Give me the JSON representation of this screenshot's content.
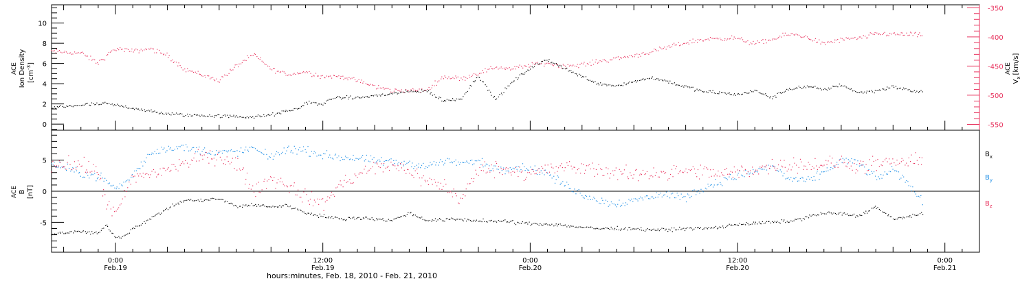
{
  "figure": {
    "x_axis_title": "hours:minutes, Feb. 18, 2010 - Feb. 21, 2010",
    "x_ticks": [
      {
        "t": 0,
        "time": "0:00",
        "date": "Feb.19"
      },
      {
        "t": 12,
        "time": "12:00",
        "date": "Feb.19"
      },
      {
        "t": 24,
        "time": "0:00",
        "date": "Feb.20"
      },
      {
        "t": 36,
        "time": "12:00",
        "date": "Feb.20"
      },
      {
        "t": 48,
        "time": "0:00",
        "date": "Feb.21"
      }
    ]
  },
  "colors": {
    "black": "#000000",
    "red": "#e8345f",
    "blue": "#1f8fe6"
  },
  "chart_data": [
    {
      "type": "scatter",
      "panel": "top",
      "xlim": [
        -3.7,
        50.0
      ],
      "ylim_left": [
        -0.6,
        11.8
      ],
      "ylim_right": [
        -560,
        -345
      ],
      "left_ylabel": [
        "ACE",
        "Ion Density",
        "[cm",
        "-3",
        "]"
      ],
      "right_ylabel": [
        "ACE",
        "V",
        "x",
        "[km/s]"
      ],
      "left_ticks": [
        "0",
        "2",
        "4",
        "6",
        "8",
        "10"
      ],
      "left_tick_values": [
        0,
        2,
        4,
        6,
        8,
        10
      ],
      "right_ticks": [
        "-550",
        "-500",
        "-450",
        "-400",
        "-350"
      ],
      "right_tick_values": [
        -550,
        -500,
        -450,
        -400,
        -350
      ],
      "series": [
        {
          "color": "black",
          "axis": "left",
          "scatter": 0.25,
          "x": [
            -3.7,
            -2,
            -0.5,
            1,
            2.5,
            4,
            6,
            8,
            9,
            10.5,
            11.2,
            12,
            12.5,
            14,
            16,
            17,
            18,
            19,
            20,
            21,
            22,
            23,
            24,
            25,
            26,
            27,
            28,
            29,
            30,
            31,
            32,
            33,
            34,
            35,
            36,
            37,
            38,
            39,
            40,
            41,
            42,
            43,
            44,
            45,
            46,
            46.7
          ],
          "y": [
            1.6,
            1.9,
            2.0,
            1.6,
            1.1,
            0.9,
            0.8,
            0.7,
            0.9,
            1.5,
            2.2,
            1.9,
            2.6,
            2.6,
            3.0,
            3.2,
            3.3,
            2.3,
            2.5,
            4.8,
            2.4,
            4.2,
            5.5,
            6.4,
            5.5,
            4.7,
            4.0,
            3.8,
            4.2,
            4.6,
            4.2,
            3.7,
            3.2,
            3.1,
            2.9,
            3.3,
            2.6,
            3.5,
            3.7,
            3.4,
            3.9,
            3.1,
            3.3,
            3.7,
            3.3,
            3.2
          ]
        },
        {
          "color": "red",
          "axis": "right",
          "scatter": 6,
          "x": [
            -3.7,
            -2,
            -1,
            0,
            1,
            2,
            3,
            4,
            5,
            6,
            7,
            8,
            9,
            10,
            11,
            12,
            13,
            14,
            15,
            16,
            17,
            18,
            19,
            20,
            21,
            22,
            23,
            24,
            25,
            26,
            27,
            28,
            29,
            30,
            31,
            32,
            33,
            34,
            35,
            36,
            37,
            38,
            39,
            40,
            41,
            42,
            43,
            44,
            45,
            46,
            46.7
          ],
          "y": [
            -425,
            -428,
            -445,
            -420,
            -425,
            -420,
            -432,
            -455,
            -465,
            -475,
            -450,
            -430,
            -455,
            -465,
            -460,
            -468,
            -468,
            -475,
            -485,
            -492,
            -492,
            -492,
            -468,
            -472,
            -462,
            -452,
            -455,
            -448,
            -445,
            -450,
            -448,
            -442,
            -437,
            -432,
            -426,
            -418,
            -410,
            -405,
            -402,
            -403,
            -412,
            -405,
            -395,
            -400,
            -412,
            -405,
            -403,
            -395,
            -395,
            -396,
            -398
          ]
        }
      ]
    },
    {
      "type": "scatter",
      "panel": "bottom",
      "xlim": [
        -3.7,
        50.0
      ],
      "ylim": [
        -9.8,
        9.8
      ],
      "left_ylabel": [
        "ACE",
        "B",
        "[nT]"
      ],
      "left_ticks": [
        "-5",
        "0",
        "5"
      ],
      "left_tick_values": [
        -5,
        0,
        5
      ],
      "legend": [
        "B",
        "B",
        "B"
      ],
      "legend_sub": [
        "x",
        "y",
        "z"
      ],
      "series": [
        {
          "color": "black",
          "scatter": 0.4,
          "x": [
            -3.7,
            -2,
            -1,
            -0.5,
            0,
            0.5,
            1,
            2,
            3,
            4,
            5,
            6,
            7,
            8,
            9,
            10,
            11,
            12,
            13,
            14,
            15,
            16,
            17,
            18,
            19,
            20,
            21,
            22,
            23,
            24,
            25,
            26,
            27,
            28,
            29,
            30,
            31,
            32,
            33,
            34,
            35,
            36,
            37,
            38,
            39,
            40,
            41,
            42,
            43,
            44,
            45,
            46,
            46.7
          ],
          "y": [
            -6.8,
            -6.5,
            -6.8,
            -5.5,
            -7.5,
            -7.2,
            -6,
            -4.5,
            -2.8,
            -1.5,
            -1.5,
            -1.2,
            -2.5,
            -2.2,
            -2.5,
            -2.3,
            -3.5,
            -4,
            -4.5,
            -4.2,
            -4.5,
            -4.7,
            -3.5,
            -4.7,
            -4.6,
            -4.5,
            -4.8,
            -4.8,
            -5,
            -5.2,
            -5.3,
            -5.5,
            -5.8,
            -6,
            -6,
            -6,
            -6.2,
            -6.2,
            -6,
            -6,
            -5.8,
            -5.3,
            -5.2,
            -5,
            -4.8,
            -4.2,
            -3.5,
            -3.6,
            -4,
            -2.5,
            -4.5,
            -4,
            -3.7
          ]
        },
        {
          "color": "blue",
          "scatter": 1.0,
          "x": [
            -3.7,
            -2,
            -1,
            0,
            0.5,
            1,
            2,
            3,
            4,
            5,
            6,
            7,
            8,
            9,
            10,
            11,
            12,
            13,
            14,
            15,
            16,
            17,
            18,
            19,
            20,
            21,
            22,
            23,
            24,
            25,
            26,
            27,
            28,
            29,
            30,
            31,
            32,
            33,
            34,
            35,
            36,
            37,
            38,
            39,
            40,
            41,
            42,
            43,
            44,
            45,
            46,
            46.7
          ],
          "y": [
            4.5,
            2.8,
            2.5,
            0.5,
            1.2,
            2.5,
            6,
            7,
            7,
            6.5,
            6.2,
            6.3,
            6.8,
            5.5,
            6.8,
            6.5,
            5.8,
            5.5,
            5.2,
            4.9,
            4.6,
            4.5,
            4,
            4.8,
            4.5,
            4.8,
            3.5,
            3.8,
            3.8,
            2.8,
            1,
            -0.5,
            -1.5,
            -2,
            -1.5,
            -0.8,
            -0.5,
            -1,
            0.5,
            1.5,
            2.5,
            3.2,
            4,
            2,
            1.5,
            3,
            5,
            4.5,
            2,
            3.5,
            1,
            -1.8
          ]
        },
        {
          "color": "red",
          "scatter": 1.8,
          "x": [
            -3.7,
            -2,
            -1,
            -0.5,
            0,
            1,
            2,
            3,
            4,
            5,
            6,
            7,
            8,
            9,
            10,
            11,
            12,
            13,
            14,
            15,
            16,
            17,
            18,
            19,
            20,
            21,
            22,
            23,
            24,
            25,
            26,
            27,
            28,
            29,
            30,
            31,
            32,
            33,
            34,
            35,
            36,
            37,
            38,
            39,
            40,
            41,
            42,
            43,
            44,
            45,
            46,
            46.7
          ],
          "y": [
            4.5,
            4.2,
            3,
            -2,
            -4,
            2,
            2.8,
            3.5,
            4.5,
            5.5,
            5.5,
            4.5,
            0,
            2,
            1,
            -1,
            -2,
            1,
            2.5,
            3.8,
            4,
            3.5,
            1.5,
            1,
            -1.5,
            3.5,
            3.7,
            3.3,
            3,
            3.5,
            3.8,
            3.6,
            3.5,
            2.8,
            2.7,
            3,
            2.9,
            3.2,
            3,
            2.7,
            3,
            3.5,
            4,
            4.5,
            4.2,
            4.3,
            4.5,
            4,
            4.2,
            4.5,
            4.8,
            4.5
          ]
        }
      ]
    }
  ]
}
